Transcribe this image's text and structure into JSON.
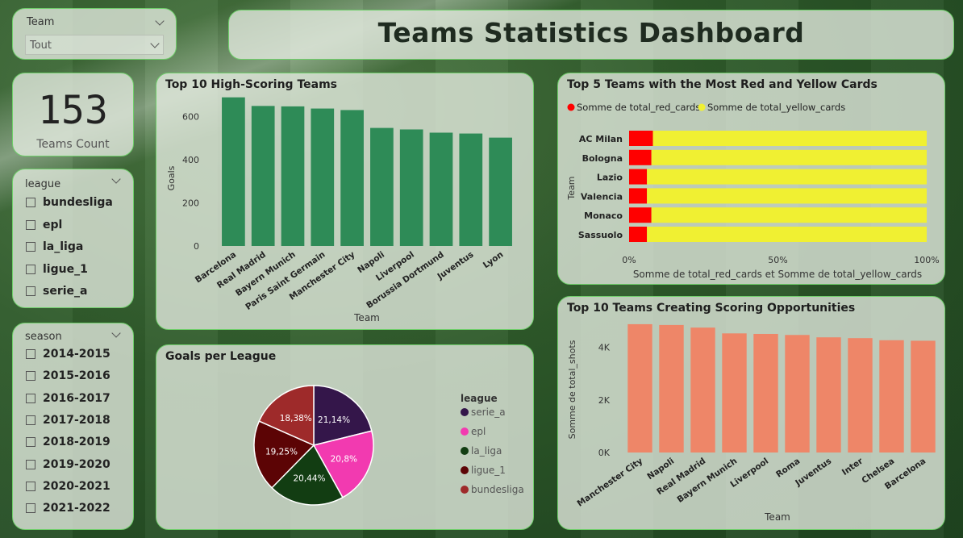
{
  "title": "Teams Statistics Dashboard",
  "team_slicer": {
    "label": "Team",
    "value": "Tout"
  },
  "card": {
    "value": "153",
    "label": "Teams Count"
  },
  "league_slicer": {
    "label": "league",
    "items": [
      "bundesliga",
      "epl",
      "la_liga",
      "ligue_1",
      "serie_a"
    ]
  },
  "season_slicer": {
    "label": "season",
    "items": [
      "2014-2015",
      "2015-2016",
      "2016-2017",
      "2017-2018",
      "2018-2019",
      "2019-2020",
      "2020-2021",
      "2021-2022"
    ]
  },
  "colors": {
    "scoring_bar": "#2e8b57",
    "opps_bar": "#ee8668",
    "red": "#ff0000",
    "yellow": "#f0f032",
    "panel_border": "#6fce6a"
  },
  "chart_data": [
    {
      "type": "bar",
      "title": "Top 10 High-Scoring Teams",
      "xlabel": "Team",
      "ylabel": "Goals",
      "categories": [
        "Barcelona",
        "Real Madrid",
        "Bayern Munich",
        "Paris Saint Germain",
        "Manchester City",
        "Napoli",
        "Liverpool",
        "Borussia Dortmund",
        "Juventus",
        "Lyon"
      ],
      "values": [
        690,
        650,
        648,
        638,
        631,
        548,
        541,
        526,
        522,
        503
      ],
      "ylim": [
        0,
        700
      ],
      "yticks": [
        "0",
        "200",
        "400",
        "600"
      ],
      "ytick_values": [
        0,
        200,
        400,
        600
      ]
    },
    {
      "type": "bar",
      "title": "Top 5 Teams with the Most Red and Yellow Cards",
      "orientation": "horizontal-stacked-100",
      "categories": [
        "AC Milan",
        "Bologna",
        "Lazio",
        "Valencia",
        "Monaco",
        "Sassuolo"
      ],
      "ylabel": "Team",
      "xlabel": "Somme de total_red_cards et Somme de total_yellow_cards",
      "xticks": [
        "0%",
        "50%",
        "100%"
      ],
      "series": [
        {
          "name": "Somme de total_red_cards",
          "values": [
            8,
            7.5,
            6,
            6,
            7.5,
            6
          ]
        },
        {
          "name": "Somme de total_yellow_cards",
          "values": [
            92,
            92.5,
            94,
            94,
            92.5,
            94
          ]
        }
      ],
      "legend": "top-left"
    },
    {
      "type": "pie",
      "title": "Goals per League",
      "legend_title": "league",
      "labels": [
        "serie_a",
        "epl",
        "la_liga",
        "ligue_1",
        "bundesliga"
      ],
      "values": [
        21.14,
        20.8,
        20.44,
        19.25,
        18.38
      ],
      "value_labels": [
        "21,14%",
        "20,8%",
        "20,44%",
        "19,25%",
        "18,38%"
      ],
      "colors": [
        "#34164a",
        "#f23ab0",
        "#123d12",
        "#5c0405",
        "#9e2a2a"
      ],
      "legend": "right"
    },
    {
      "type": "bar",
      "title": "Top 10 Teams Creating Scoring Opportunities",
      "xlabel": "Team",
      "ylabel": "Somme de total_shots",
      "categories": [
        "Manchester City",
        "Napoli",
        "Real Madrid",
        "Bayern Munich",
        "Liverpool",
        "Roma",
        "Juventus",
        "Inter",
        "Chelsea",
        "Barcelona"
      ],
      "values": [
        4880,
        4850,
        4750,
        4530,
        4510,
        4470,
        4380,
        4350,
        4270,
        4250
      ],
      "ylim": [
        0,
        5000
      ],
      "yticks": [
        "0K",
        "2K",
        "4K"
      ],
      "ytick_values": [
        0,
        2000,
        4000
      ]
    }
  ]
}
